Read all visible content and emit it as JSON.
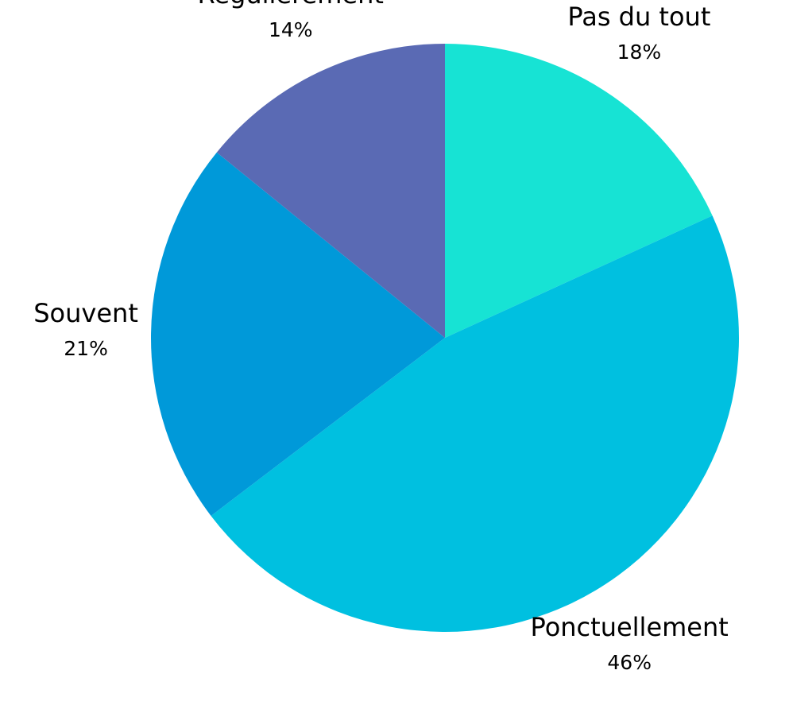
{
  "chart_data": {
    "type": "pie",
    "categories": [
      "Pas du tout",
      "Ponctuellement",
      "Souvent",
      "Régulièrement"
    ],
    "values": [
      18,
      46,
      21,
      14
    ],
    "value_labels": [
      "18%",
      "46%",
      "21%",
      "14%"
    ],
    "colors": [
      "#17e3d4",
      "#00c0e0",
      "#0099d9",
      "#5a6ab4"
    ]
  }
}
